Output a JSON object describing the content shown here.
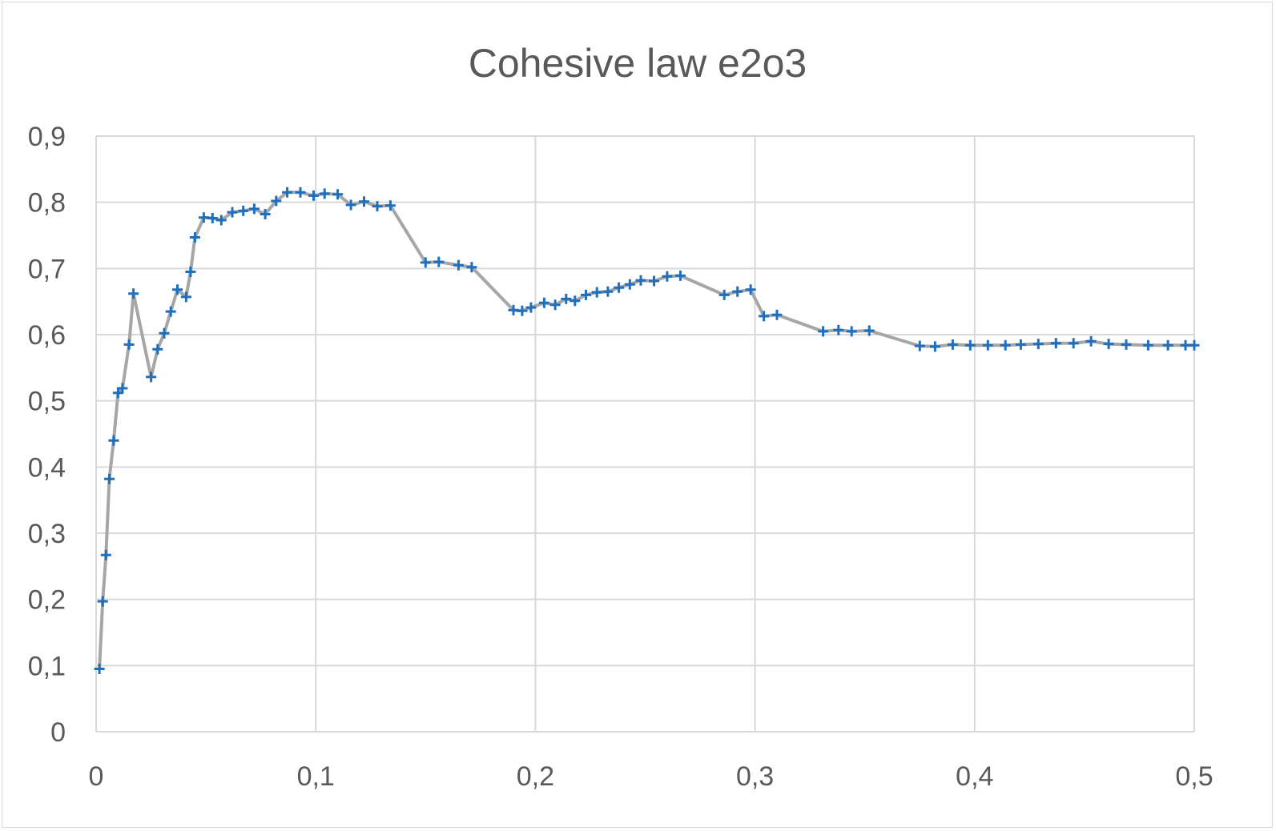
{
  "chart_data": {
    "type": "line",
    "title": "Cohesive law e2o3",
    "xlabel": "",
    "ylabel": "",
    "xlim": [
      0,
      0.5
    ],
    "ylim": [
      0,
      0.9
    ],
    "x_ticks": [
      "0",
      "0,1",
      "0,2",
      "0,3",
      "0,4",
      "0,5"
    ],
    "y_ticks": [
      "0",
      "0,1",
      "0,2",
      "0,3",
      "0,4",
      "0,5",
      "0,6",
      "0,7",
      "0,8",
      "0,9"
    ],
    "grid": true,
    "legend": "none",
    "colors": {
      "line": "#a6a6a6",
      "marker": "#1f6fbf",
      "grid": "#d9d9d9",
      "text": "#595959"
    },
    "series": [
      {
        "marker": "plus",
        "points": [
          [
            0.0015,
            0.095
          ],
          [
            0.003,
            0.197
          ],
          [
            0.0045,
            0.267
          ],
          [
            0.006,
            0.382
          ],
          [
            0.008,
            0.44
          ],
          [
            0.01,
            0.512
          ],
          [
            0.012,
            0.519
          ],
          [
            0.015,
            0.585
          ],
          [
            0.017,
            0.662
          ],
          [
            0.025,
            0.536
          ],
          [
            0.028,
            0.578
          ],
          [
            0.031,
            0.602
          ],
          [
            0.034,
            0.635
          ],
          [
            0.037,
            0.668
          ],
          [
            0.041,
            0.657
          ],
          [
            0.043,
            0.695
          ],
          [
            0.045,
            0.747
          ],
          [
            0.049,
            0.777
          ],
          [
            0.053,
            0.776
          ],
          [
            0.057,
            0.773
          ],
          [
            0.062,
            0.785
          ],
          [
            0.067,
            0.787
          ],
          [
            0.072,
            0.79
          ],
          [
            0.077,
            0.782
          ],
          [
            0.082,
            0.802
          ],
          [
            0.087,
            0.815
          ],
          [
            0.093,
            0.815
          ],
          [
            0.099,
            0.81
          ],
          [
            0.104,
            0.813
          ],
          [
            0.11,
            0.812
          ],
          [
            0.116,
            0.796
          ],
          [
            0.122,
            0.801
          ],
          [
            0.128,
            0.794
          ],
          [
            0.134,
            0.795
          ],
          [
            0.15,
            0.709
          ],
          [
            0.156,
            0.71
          ],
          [
            0.165,
            0.705
          ],
          [
            0.171,
            0.702
          ],
          [
            0.19,
            0.637
          ],
          [
            0.194,
            0.636
          ],
          [
            0.198,
            0.641
          ],
          [
            0.204,
            0.648
          ],
          [
            0.209,
            0.645
          ],
          [
            0.214,
            0.654
          ],
          [
            0.218,
            0.651
          ],
          [
            0.223,
            0.66
          ],
          [
            0.228,
            0.664
          ],
          [
            0.233,
            0.665
          ],
          [
            0.238,
            0.671
          ],
          [
            0.243,
            0.676
          ],
          [
            0.248,
            0.682
          ],
          [
            0.254,
            0.681
          ],
          [
            0.26,
            0.688
          ],
          [
            0.266,
            0.689
          ],
          [
            0.286,
            0.66
          ],
          [
            0.292,
            0.665
          ],
          [
            0.298,
            0.668
          ],
          [
            0.304,
            0.628
          ],
          [
            0.31,
            0.63
          ],
          [
            0.331,
            0.605
          ],
          [
            0.338,
            0.607
          ],
          [
            0.344,
            0.605
          ],
          [
            0.352,
            0.606
          ],
          [
            0.375,
            0.583
          ],
          [
            0.382,
            0.582
          ],
          [
            0.39,
            0.585
          ],
          [
            0.398,
            0.584
          ],
          [
            0.406,
            0.584
          ],
          [
            0.414,
            0.584
          ],
          [
            0.421,
            0.585
          ],
          [
            0.429,
            0.586
          ],
          [
            0.437,
            0.587
          ],
          [
            0.445,
            0.587
          ],
          [
            0.453,
            0.59
          ],
          [
            0.461,
            0.586
          ],
          [
            0.469,
            0.585
          ],
          [
            0.479,
            0.584
          ],
          [
            0.488,
            0.584
          ],
          [
            0.496,
            0.584
          ],
          [
            0.5,
            0.584
          ]
        ]
      }
    ]
  }
}
